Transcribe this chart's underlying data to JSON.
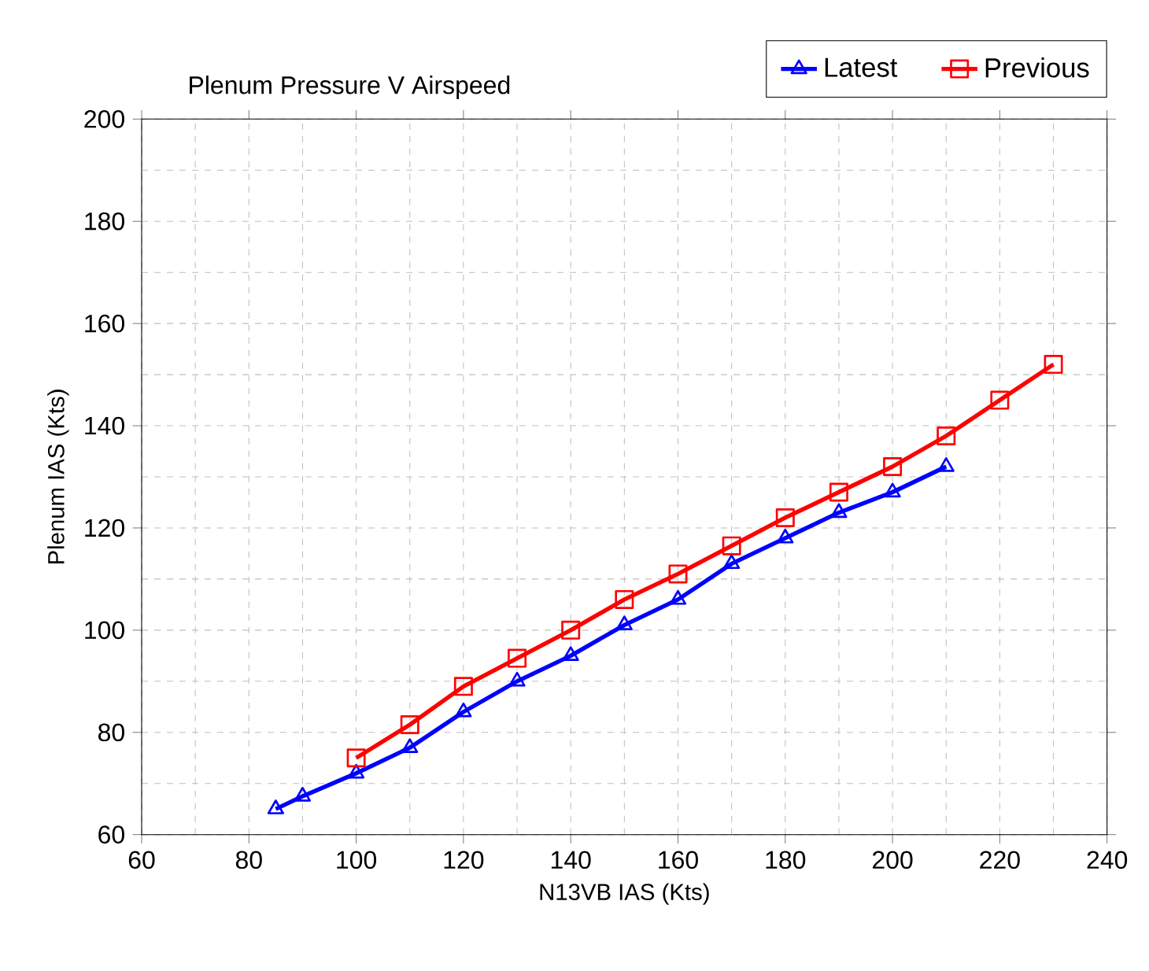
{
  "chart_data": {
    "type": "line",
    "title": "Plenum Pressure V Airspeed",
    "xlabel": "N13VB IAS (Kts)",
    "ylabel": "Plenum IAS (Kts)",
    "series": [
      {
        "name": "Latest",
        "color": "#0000ff",
        "marker": "triangle",
        "x": [
          85,
          90,
          100,
          110,
          120,
          130,
          140,
          150,
          160,
          170,
          180,
          190,
          200,
          210
        ],
        "values": [
          65,
          67.5,
          72,
          77,
          84,
          90,
          95,
          101,
          106,
          113,
          118,
          123,
          127,
          132
        ]
      },
      {
        "name": "Previous",
        "color": "#ff0000",
        "marker": "square",
        "x": [
          100,
          110,
          120,
          130,
          140,
          150,
          160,
          170,
          180,
          190,
          200,
          210,
          220,
          230
        ],
        "values": [
          75,
          81.5,
          89,
          94.5,
          100,
          106,
          111,
          116.5,
          122,
          127,
          132,
          138,
          145,
          152
        ]
      }
    ],
    "xlim": [
      60,
      240
    ],
    "xticks": [
      60,
      80,
      100,
      120,
      140,
      160,
      180,
      200,
      220,
      240
    ],
    "ylim": [
      60,
      200
    ],
    "yticks": [
      60,
      80,
      100,
      120,
      140,
      160,
      180,
      200
    ],
    "grid": true,
    "legend": "top right",
    "line_style": "solid"
  }
}
